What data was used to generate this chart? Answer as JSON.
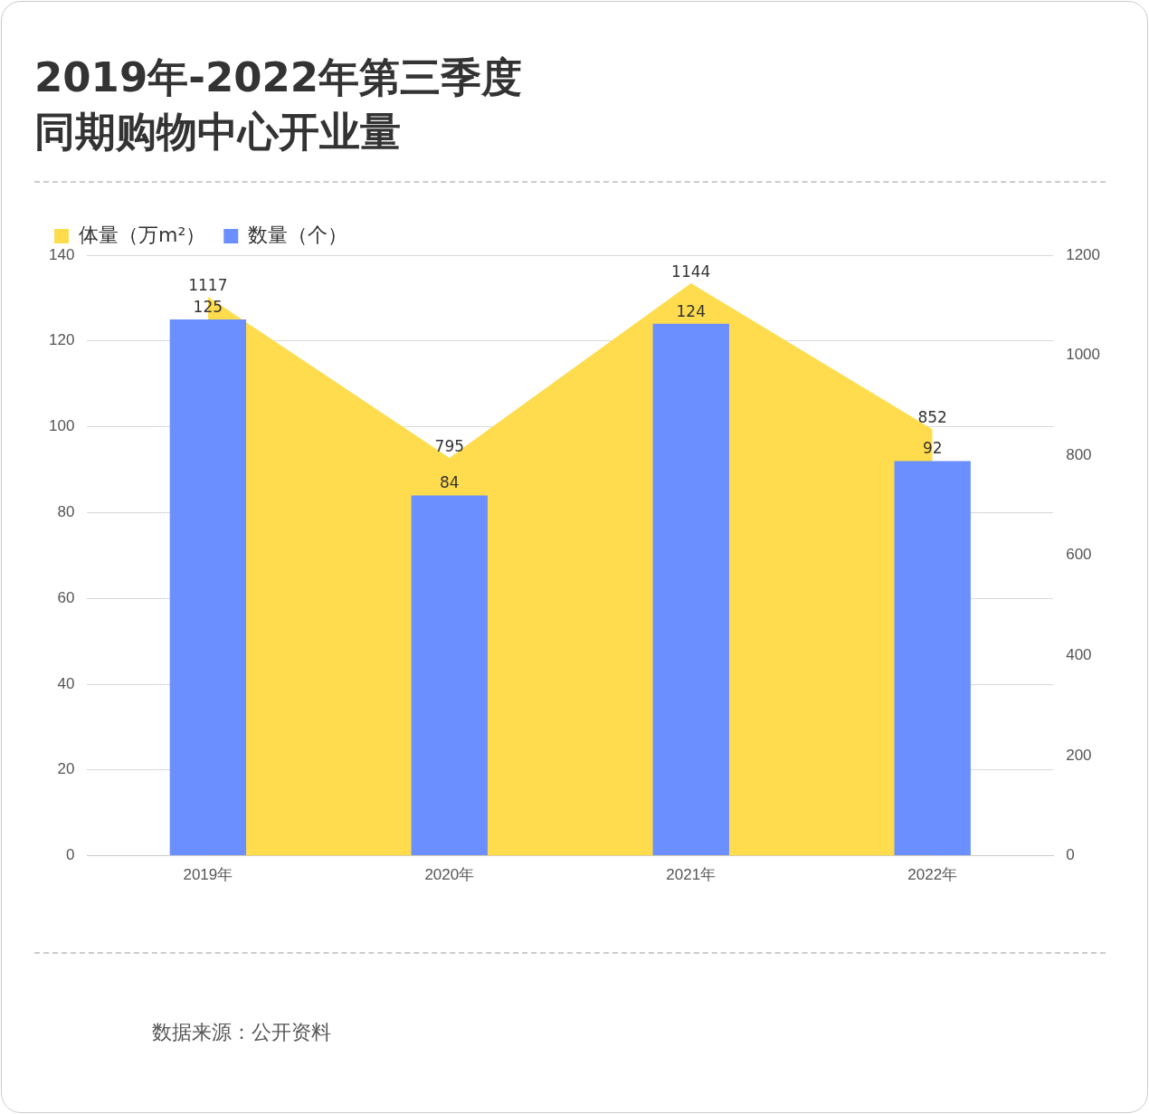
{
  "chart_data": {
    "type": "bar",
    "title": "2019年-2022年第三季度同期购物中心开业量",
    "categories": [
      "2019年",
      "2020年",
      "2021年",
      "2022年"
    ],
    "series": [
      {
        "name": "体量（万m²）",
        "type": "area",
        "axis": "y2",
        "color": "#fedc4e",
        "values": [
          1117,
          795,
          1144,
          852
        ]
      },
      {
        "name": "数量（个）",
        "color": "#6b8fff",
        "values": [
          125,
          84,
          124,
          92
        ]
      }
    ],
    "ylim": [
      0,
      140
    ],
    "yticks": [
      0,
      20,
      40,
      60,
      80,
      100,
      120,
      140
    ],
    "y2lim": [
      0,
      1200
    ],
    "y2ticks": [
      0,
      200,
      400,
      600,
      800,
      1000,
      1200
    ],
    "grid": "y",
    "legend": "top left",
    "data_labels": true,
    "annotations": [
      "数据来源：公开资料"
    ]
  }
}
